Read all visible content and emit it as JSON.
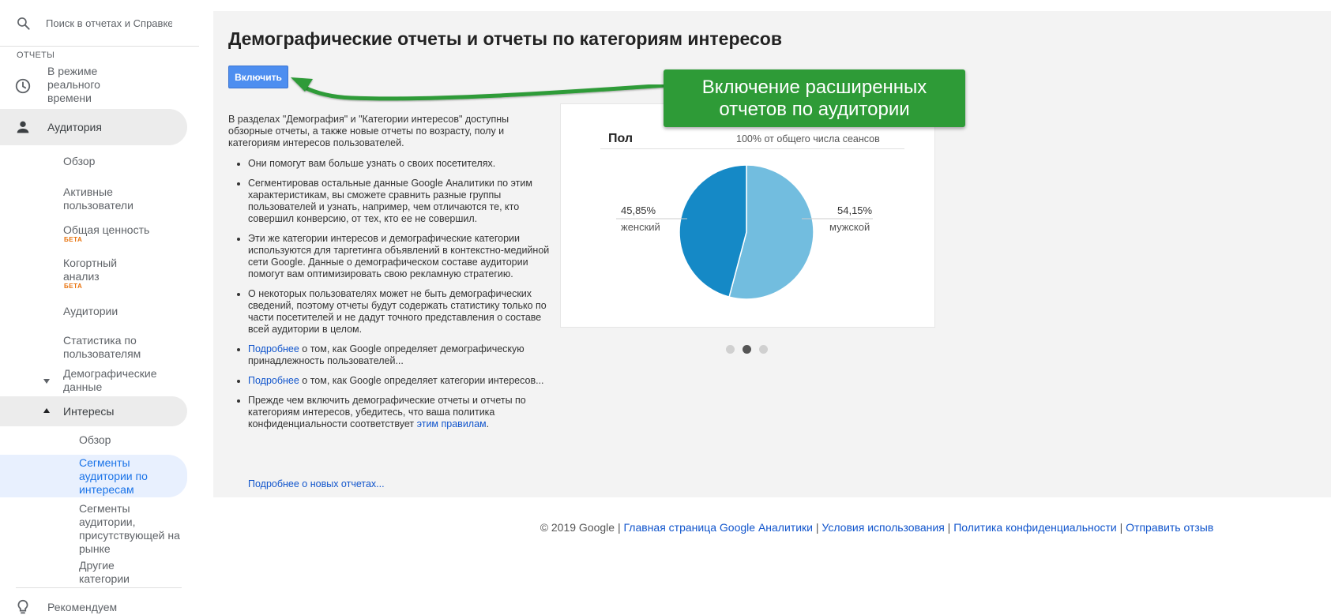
{
  "sidebar": {
    "search_placeholder": "Поиск в отчетах и Справке",
    "section_label": "ОТЧЕТЫ",
    "realtime": "В режиме реального времени",
    "audience": "Аудитория",
    "overview": "Обзор",
    "active_users": "Активные пользователи",
    "lifetime_value": "Общая ценность",
    "cohort": "Когортный анализ",
    "beta": "БЕТА",
    "audiences": "Аудитории",
    "user_explorer": "Статистика по пользователям",
    "demographics": "Демографические данные",
    "interests": "Интересы",
    "interests_overview": "Обзор",
    "affinity": "Сегменты аудитории по интересам",
    "in_market": "Сегменты аудитории, присутствующей на рынке",
    "other": "Другие категории",
    "recommend": "Рекомендуем"
  },
  "main": {
    "title": "Демографические отчеты и отчеты по категориям интересов",
    "enable_button": "Включить",
    "intro": "В разделах \"Демография\" и \"Категории интересов\" доступны обзорные отчеты, а также новые отчеты по возрасту, полу и категориям интересов пользователей.",
    "bullets": {
      "b1": "Они помогут вам больше узнать о своих посетителях.",
      "b2": "Сегментировав остальные данные Google Аналитики по этим характеристикам, вы сможете сравнить разные группы пользователей и узнать, например, чем отличаются те, кто совершил конверсию, от тех, кто ее не совершил.",
      "b3": "Эти же категории интересов и демографические категории используются для таргетинга объявлений в контекстно-медийной сети Google. Данные о демографическом составе аудитории помогут вам оптимизировать свою рекламную стратегию.",
      "b4": "О некоторых пользователях может не быть демографических сведений, поэтому отчеты будут содержать статистику только по части посетителей и не дадут точного представления о составе всей аудитории в целом.",
      "b5_link": "Подробнее",
      "b5_rest": " о том, как Google определяет демографическую принадлежность пользователей...",
      "b6_link": "Подробнее",
      "b6_rest": " о том, как Google определяет категории интересов...",
      "b7_text": "Прежде чем включить демографические отчеты и отчеты по категориям интересов, убедитесь, что ваша политика конфиденциальности соответствует ",
      "b7_link": "этим правилам",
      "b7_end": "."
    },
    "more_link": "Подробнее о новых отчетах..."
  },
  "callout": {
    "line1": "Включение расширенных",
    "line2": "отчетов по аудитории"
  },
  "chart_data": {
    "type": "pie",
    "title": "Пол",
    "subtitle": "100% от общего числа сеансов",
    "slices": [
      {
        "label": "женский",
        "value": 45.85,
        "display": "45,85%",
        "color": "#1589c6"
      },
      {
        "label": "мужской",
        "value": 54.15,
        "display": "54,15%",
        "color": "#72bddf"
      }
    ]
  },
  "carousel": {
    "count": 3,
    "active_index": 1
  },
  "footer": {
    "copyright": "© 2019 Google",
    "link1": "Главная страница Google Аналитики",
    "link2": "Условия использования",
    "link3": "Политика конфиденциальности",
    "link4": "Отправить отзыв",
    "separator": " | "
  }
}
